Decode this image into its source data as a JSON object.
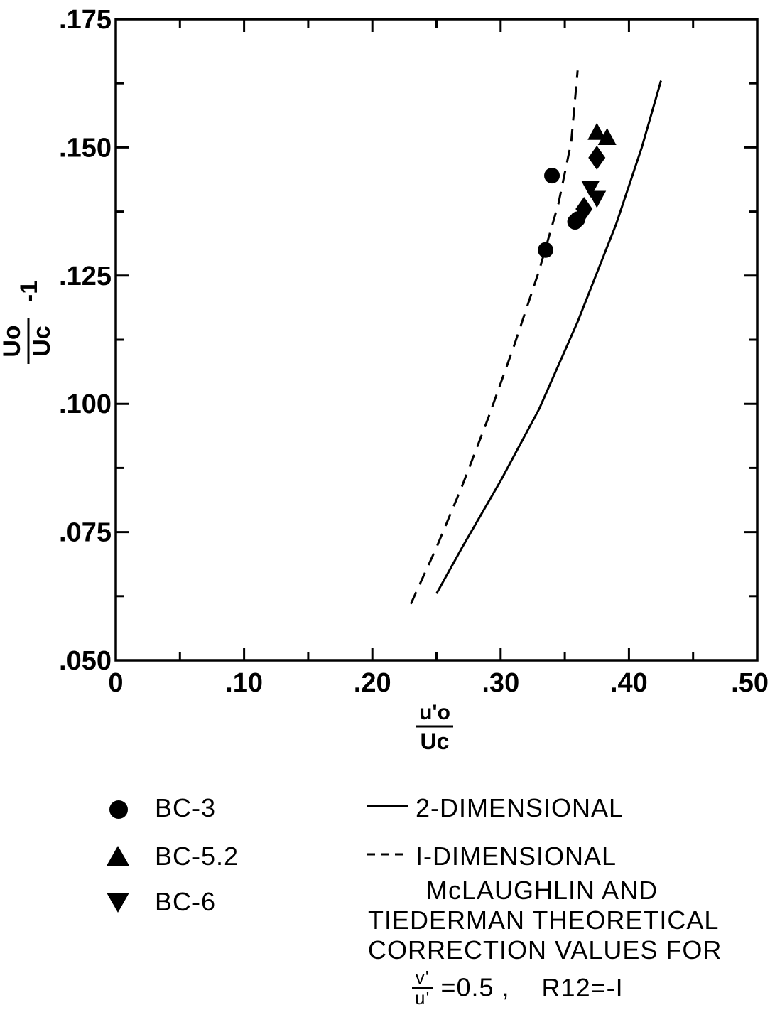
{
  "chart_data": {
    "type": "scatter",
    "title": "",
    "xlabel": {
      "numerator": "u'o",
      "denominator": "Uc"
    },
    "ylabel": {
      "numerator": "Uo",
      "denominator": "Uc",
      "suffix": "-1"
    },
    "xlim": [
      0,
      0.5
    ],
    "ylim": [
      0.05,
      0.175
    ],
    "xticks": [
      0,
      0.1,
      0.2,
      0.3,
      0.4,
      0.5
    ],
    "xtick_labels": [
      "0",
      ".10",
      ".20",
      ".30",
      ".40",
      ".50"
    ],
    "yticks": [
      0.05,
      0.075,
      0.1,
      0.125,
      0.15,
      0.175
    ],
    "ytick_labels": [
      ".050",
      ".075",
      ".100",
      ".125",
      ".150",
      ".175"
    ],
    "grid": false,
    "series": [
      {
        "name": "BC-3",
        "kind": "points",
        "marker": "circle",
        "x": [
          0.335,
          0.34,
          0.358,
          0.36
        ],
        "y": [
          0.13,
          0.1445,
          0.1355,
          0.136
        ]
      },
      {
        "name": "BC-5.2",
        "kind": "points",
        "marker": "triangle-up",
        "x": [
          0.375,
          0.383
        ],
        "y": [
          0.153,
          0.152
        ]
      },
      {
        "name": "BC-6",
        "kind": "points",
        "marker": "triangle-down",
        "x": [
          0.37,
          0.375
        ],
        "y": [
          0.142,
          0.14
        ]
      },
      {
        "name": "",
        "kind": "points",
        "marker": "diamond",
        "x": [
          0.375,
          0.365
        ],
        "y": [
          0.148,
          0.138
        ]
      },
      {
        "name": "2-DIMENSIONAL",
        "kind": "line",
        "style": "solid",
        "x": [
          0.25,
          0.27,
          0.3,
          0.33,
          0.36,
          0.39,
          0.41,
          0.425
        ],
        "y": [
          0.063,
          0.072,
          0.085,
          0.099,
          0.116,
          0.135,
          0.15,
          0.163
        ]
      },
      {
        "name": "1-DIMENSIONAL",
        "kind": "line",
        "style": "dashed",
        "x": [
          0.23,
          0.25,
          0.27,
          0.29,
          0.31,
          0.33,
          0.345,
          0.355,
          0.36
        ],
        "y": [
          0.061,
          0.072,
          0.084,
          0.097,
          0.111,
          0.126,
          0.139,
          0.151,
          0.165
        ]
      }
    ],
    "legend": {
      "markers": [
        {
          "symbol": "circle",
          "label": "BC-3"
        },
        {
          "symbol": "triangle-up",
          "label": "BC-5.2"
        },
        {
          "symbol": "triangle-down",
          "label": "BC-6"
        }
      ],
      "lines": [
        {
          "style": "solid",
          "label": "2-DIMENSIONAL"
        },
        {
          "style": "dashed",
          "label": "I-DIMENSIONAL"
        }
      ],
      "note_lines": [
        "McLAUGHLIN AND",
        "TIEDERMAN THEORETICAL",
        "CORRECTION VALUES FOR"
      ],
      "formula": {
        "numerator": "v'",
        "denominator": "u'",
        "rhs": "=0.5 ,",
        "r12": "R12=-I"
      }
    }
  }
}
